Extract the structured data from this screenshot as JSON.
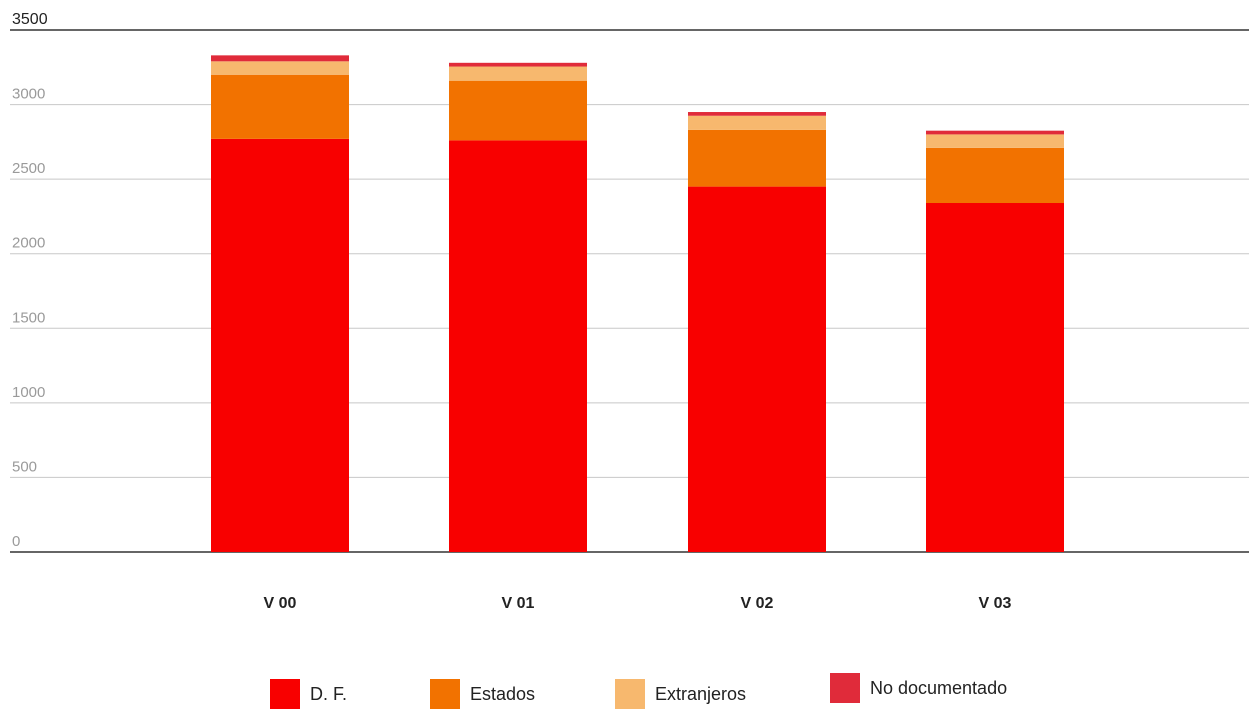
{
  "chart_data": {
    "type": "bar",
    "stacked": true,
    "categories": [
      "V 00",
      "V 01",
      "V 02",
      "V 03"
    ],
    "series": [
      {
        "name": "D. F.",
        "values": [
          2770,
          2760,
          2450,
          2340
        ],
        "color": "#f80000"
      },
      {
        "name": "Estados",
        "values": [
          430,
          400,
          380,
          370
        ],
        "color": "#f27200"
      },
      {
        "name": "Extranjeros",
        "values": [
          90,
          95,
          95,
          90
        ],
        "color": "#f7b86e"
      },
      {
        "name": "No documentado",
        "values": [
          40,
          25,
          25,
          25
        ],
        "color": "#e02b3a"
      }
    ],
    "ylim": [
      0,
      3500
    ],
    "yticks": [
      "0",
      "500",
      "1000",
      "1500",
      "2000",
      "2500",
      "3000",
      "3500"
    ],
    "grid": true,
    "legend_position": "bottom",
    "title": "",
    "xlabel": "",
    "ylabel": ""
  }
}
